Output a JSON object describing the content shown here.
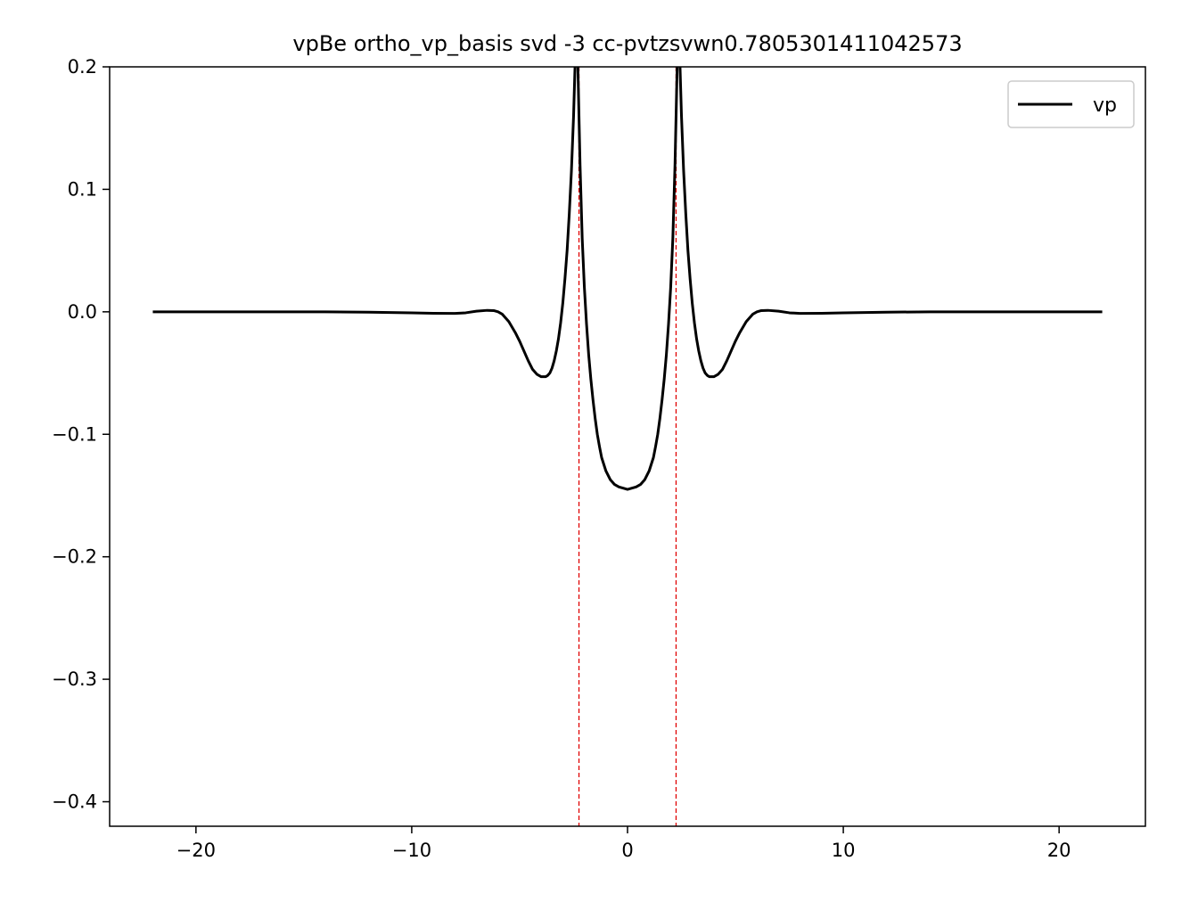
{
  "chart_data": {
    "type": "line",
    "title": "vpBe ortho_vp_basis svd -3 cc-pvtzsvwn0.7805301411042573",
    "xlabel": "",
    "ylabel": "",
    "xlim": [
      -24,
      24
    ],
    "ylim": [
      -0.42,
      0.2
    ],
    "x_ticks": [
      -20,
      -10,
      0,
      10,
      20
    ],
    "x_tick_labels": [
      "−20",
      "−10",
      "0",
      "10",
      "20"
    ],
    "y_ticks": [
      0.2,
      0.1,
      0.0,
      -0.1,
      -0.2,
      -0.3,
      -0.4
    ],
    "y_tick_labels": [
      "0.2",
      "0.1",
      "0.0",
      "−0.1",
      "−0.2",
      "−0.3",
      "−0.4"
    ],
    "grid": false,
    "legend_position": "upper-right",
    "series": [
      {
        "name": "vp",
        "color": "#000000",
        "x": [
          -22,
          -20,
          -18,
          -16,
          -14,
          -12,
          -10,
          -9,
          -8,
          -7.5,
          -7,
          -6.5,
          -6.2,
          -6,
          -5.8,
          -5.5,
          -5.2,
          -5,
          -4.8,
          -4.6,
          -4.4,
          -4.2,
          -4,
          -3.8,
          -3.7,
          -3.6,
          -3.5,
          -3.4,
          -3.3,
          -3.2,
          -3.1,
          -3.0,
          -2.9,
          -2.8,
          -2.7,
          -2.6,
          -2.5,
          -2.45,
          -2.4,
          -2.4,
          -2.3,
          -2.2,
          -2.1,
          -2.0,
          -1.9,
          -1.8,
          -1.7,
          -1.6,
          -1.5,
          -1.4,
          -1.3,
          -1.2,
          -1.0,
          -0.8,
          -0.6,
          -0.4,
          -0.2,
          0,
          0.2,
          0.4,
          0.6,
          0.8,
          1.0,
          1.2,
          1.3,
          1.4,
          1.5,
          1.6,
          1.7,
          1.8,
          1.9,
          2.0,
          2.1,
          2.2,
          2.3,
          2.4,
          2.4,
          2.45,
          2.5,
          2.6,
          2.7,
          2.8,
          2.9,
          3.0,
          3.1,
          3.2,
          3.3,
          3.4,
          3.5,
          3.6,
          3.7,
          3.8,
          4,
          4.2,
          4.4,
          4.6,
          4.8,
          5,
          5.2,
          5.5,
          5.8,
          6,
          6.2,
          6.5,
          7,
          7.5,
          8,
          9,
          10,
          12,
          14,
          16,
          18,
          20,
          22
        ],
        "y": [
          0,
          0,
          0,
          0,
          0,
          -0.0003,
          -0.0008,
          -0.0012,
          -0.0013,
          -0.0008,
          0.0005,
          0.0012,
          0.001,
          0.0,
          -0.002,
          -0.008,
          -0.017,
          -0.024,
          -0.032,
          -0.04,
          -0.047,
          -0.051,
          -0.053,
          -0.053,
          -0.052,
          -0.05,
          -0.046,
          -0.04,
          -0.032,
          -0.022,
          -0.009,
          0.007,
          0.027,
          0.05,
          0.08,
          0.115,
          0.16,
          0.19,
          0.22,
          0.22,
          0.2,
          0.12,
          0.06,
          0.02,
          -0.01,
          -0.035,
          -0.055,
          -0.072,
          -0.087,
          -0.1,
          -0.11,
          -0.119,
          -0.13,
          -0.137,
          -0.141,
          -0.143,
          -0.144,
          -0.145,
          -0.144,
          -0.143,
          -0.141,
          -0.137,
          -0.13,
          -0.119,
          -0.11,
          -0.1,
          -0.087,
          -0.072,
          -0.055,
          -0.035,
          -0.01,
          0.02,
          0.06,
          0.12,
          0.2,
          0.22,
          0.22,
          0.19,
          0.16,
          0.115,
          0.08,
          0.05,
          0.027,
          0.007,
          -0.009,
          -0.022,
          -0.032,
          -0.04,
          -0.046,
          -0.05,
          -0.052,
          -0.053,
          -0.053,
          -0.051,
          -0.047,
          -0.04,
          -0.032,
          -0.024,
          -0.017,
          -0.008,
          -0.002,
          0.0,
          0.001,
          0.0012,
          0.0005,
          -0.0008,
          -0.0013,
          -0.0012,
          -0.0008,
          -0.0003,
          0,
          0,
          0,
          0,
          0
        ]
      }
    ],
    "vlines": [
      {
        "x": -2.25,
        "color": "#e00000",
        "style": "dashed"
      },
      {
        "x": 2.25,
        "color": "#e00000",
        "style": "dashed"
      }
    ]
  }
}
